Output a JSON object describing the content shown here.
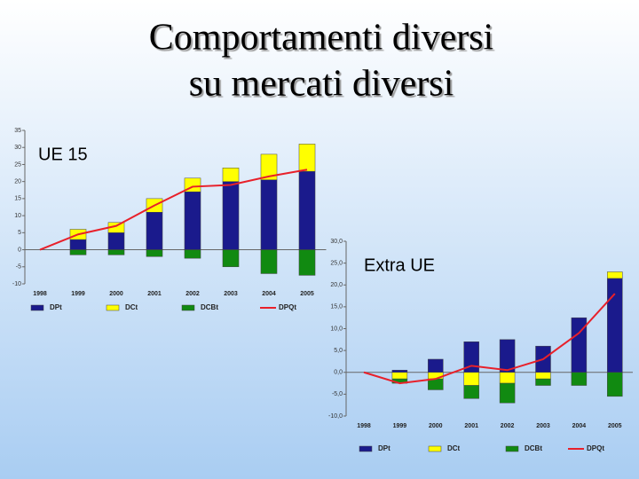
{
  "slide_title": [
    "Comportamenti diversi",
    "su mercati diversi"
  ],
  "chart_data": [
    {
      "type": "bar",
      "stacked": true,
      "title": "UE 15",
      "categories": [
        "1998",
        "1999",
        "2000",
        "2001",
        "2002",
        "2003",
        "2004",
        "2005"
      ],
      "series": [
        {
          "name": "DPt",
          "color": "#1a1a8c",
          "values": [
            0,
            3,
            5,
            11,
            17,
            20,
            20.5,
            23
          ]
        },
        {
          "name": "DCt",
          "color": "#ffff00",
          "values": [
            0,
            3,
            3,
            4,
            4,
            4,
            7.5,
            8
          ]
        },
        {
          "name": "DCBt",
          "color": "#118a11",
          "values": [
            0,
            -1.5,
            -1.5,
            -2,
            -2.5,
            -5,
            -7,
            -7.5
          ]
        },
        {
          "name": "DPQt",
          "color": "#e8202a",
          "type": "line",
          "values": [
            0,
            4.5,
            7,
            13,
            18.5,
            19,
            21.5,
            23.5
          ]
        }
      ],
      "ylim": [
        -10,
        35
      ],
      "yticks": [
        -10,
        -5,
        0,
        5,
        10,
        15,
        20,
        25,
        30,
        35
      ]
    },
    {
      "type": "bar",
      "stacked": true,
      "title": "Extra UE",
      "categories": [
        "1998",
        "1999",
        "2000",
        "2001",
        "2002",
        "2003",
        "2004",
        "2005"
      ],
      "series": [
        {
          "name": "DPt",
          "color": "#1a1a8c",
          "values": [
            0,
            0.5,
            3,
            7,
            7.5,
            6,
            12.5,
            21.5
          ]
        },
        {
          "name": "DCt",
          "color": "#ffff00",
          "values": [
            0,
            -1.5,
            -1.5,
            -3,
            -2.5,
            -1.5,
            0,
            1.5
          ]
        },
        {
          "name": "DCBt",
          "color": "#118a11",
          "values": [
            0,
            -1,
            -2.5,
            -3,
            -4.5,
            -1.5,
            -3,
            -5.5
          ]
        },
        {
          "name": "DPQt",
          "color": "#e8202a",
          "type": "line",
          "values": [
            0,
            -2.5,
            -1.5,
            1.5,
            0.5,
            3,
            9,
            18
          ]
        }
      ],
      "ylim": [
        -10,
        30
      ],
      "yticks": [
        {
          "value": -10,
          "label": "-10,0"
        },
        {
          "value": -5,
          "label": "-5,0"
        },
        {
          "value": 0,
          "label": "0,0"
        },
        {
          "value": 5,
          "label": "5,0"
        },
        {
          "value": 10,
          "label": "10,0"
        },
        {
          "value": 15,
          "label": "15,0"
        },
        {
          "value": 20,
          "label": "20,0"
        },
        {
          "value": 25,
          "label": "25,0"
        },
        {
          "value": 30,
          "label": "30,0"
        }
      ]
    }
  ]
}
